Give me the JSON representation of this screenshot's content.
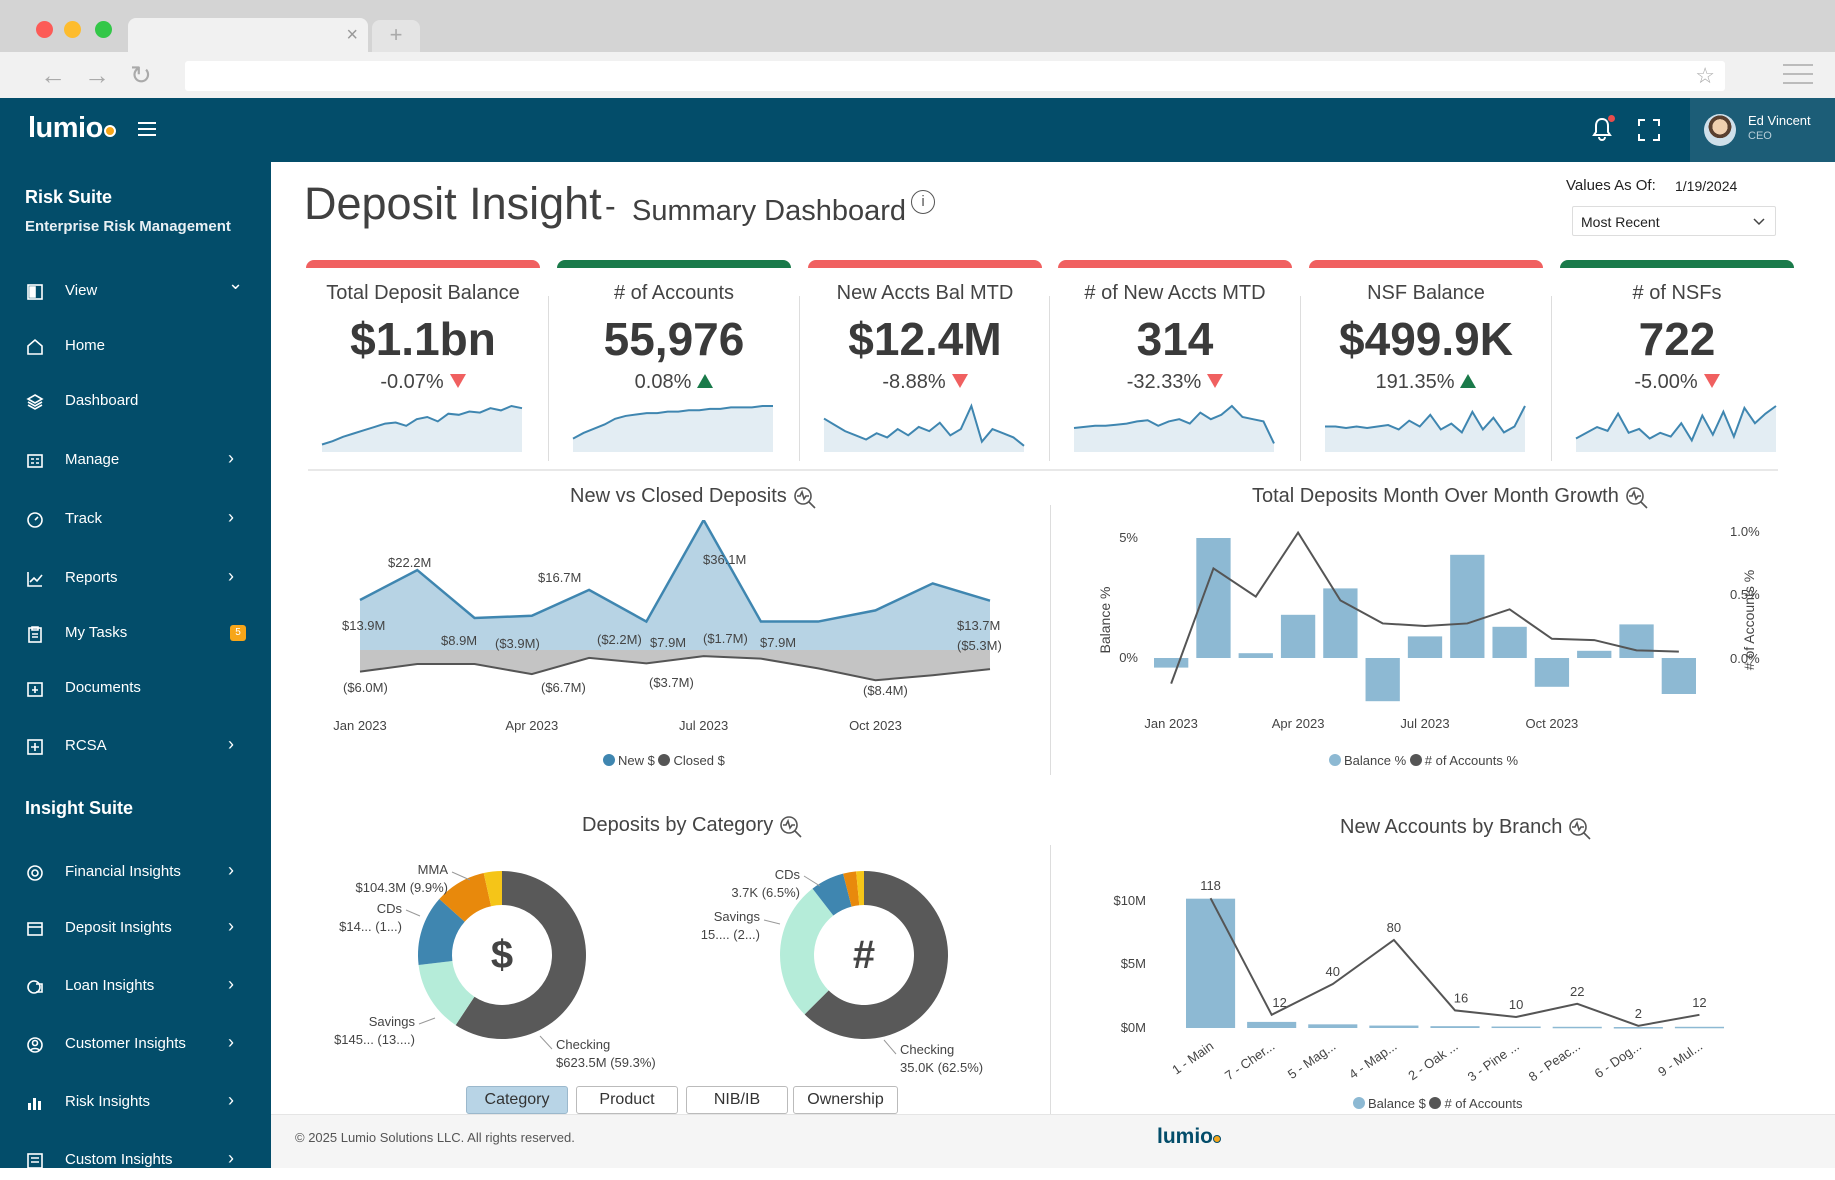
{
  "browser": {
    "tab_close": "×",
    "new_tab": "+",
    "back": "←",
    "forward": "→",
    "reload": "↻",
    "star": "☆"
  },
  "app": {
    "logo": "lumio",
    "footer_logo": "lumio"
  },
  "user": {
    "name": "Ed Vincent",
    "role": "CEO"
  },
  "sidebar": {
    "risk_suite_title": "Risk Suite",
    "risk_suite_subtitle": "Enterprise Risk Management",
    "insight_suite_title": "Insight Suite",
    "items": [
      {
        "label": "View",
        "chevron": "⌄"
      },
      {
        "label": "Home"
      },
      {
        "label": "Dashboard"
      },
      {
        "label": "Manage",
        "chevron": "›"
      },
      {
        "label": "Track",
        "chevron": "›"
      },
      {
        "label": "Reports",
        "chevron": "›"
      },
      {
        "label": "My Tasks",
        "badge": "5"
      },
      {
        "label": "Documents"
      },
      {
        "label": "RCSA",
        "chevron": "›"
      }
    ],
    "insight_items": [
      {
        "label": "Financial Insights",
        "chevron": "›"
      },
      {
        "label": "Deposit Insights",
        "chevron": "›"
      },
      {
        "label": "Loan Insights",
        "chevron": "›"
      },
      {
        "label": "Customer Insights",
        "chevron": "›"
      },
      {
        "label": "Risk Insights",
        "chevron": "›"
      },
      {
        "label": "Custom Insights",
        "chevron": "›"
      }
    ]
  },
  "header": {
    "title": "Deposit Insight",
    "dash": "-",
    "subtitle": "Summary Dashboard",
    "info": "i",
    "values_as_of_label": "Values As Of:",
    "values_as_of_date": "1/19/2024",
    "period_select": "Most Recent"
  },
  "colors": {
    "up": "#1a7a4a",
    "down": "#f06060",
    "primary": "#034d6a",
    "bar_light": "#8db9d3",
    "area": "#a9c9dc",
    "dark": "#595959",
    "orange": "#e8890c",
    "yellow": "#f5c518",
    "mint": "#b5ecd9",
    "blue": "#3f86b0"
  },
  "kpis": [
    {
      "label": "Total Deposit Balance",
      "value": "$1.1bn",
      "change": "-0.07%",
      "direction": "down",
      "spark": [
        5,
        8,
        12,
        15,
        18,
        21,
        24,
        25,
        22,
        28,
        30,
        26,
        33,
        32,
        35,
        34,
        38,
        36,
        40,
        38
      ]
    },
    {
      "label": "# of Accounts",
      "value": "55,976",
      "change": "0.08%",
      "direction": "up",
      "spark": [
        8,
        12,
        15,
        18,
        22,
        24,
        25,
        26,
        26,
        27,
        27,
        28,
        28,
        29,
        29,
        30,
        30,
        30,
        31,
        31
      ]
    },
    {
      "label": "New Accts Bal MTD",
      "value": "$12.4M",
      "change": "-8.88%",
      "direction": "down",
      "spark": [
        30,
        24,
        18,
        14,
        10,
        16,
        12,
        20,
        14,
        22,
        18,
        26,
        14,
        20,
        42,
        8,
        20,
        16,
        12,
        4
      ]
    },
    {
      "label": "# of New Accts MTD",
      "value": "314",
      "change": "-32.33%",
      "direction": "down",
      "spark": [
        20,
        21,
        22,
        22,
        23,
        24,
        26,
        27,
        22,
        26,
        28,
        24,
        34,
        28,
        32,
        40,
        30,
        28,
        26,
        6
      ]
    },
    {
      "label": "NSF Balance",
      "value": "$499.9K",
      "change": "191.35%",
      "direction": "up",
      "spark": [
        16,
        16,
        15,
        16,
        15,
        16,
        17,
        14,
        20,
        16,
        24,
        14,
        18,
        12,
        26,
        14,
        22,
        12,
        16,
        30
      ]
    },
    {
      "label": "# of NSFs",
      "value": "722",
      "change": "-5.00%",
      "direction": "down",
      "spark": [
        12,
        18,
        24,
        20,
        38,
        18,
        22,
        12,
        18,
        14,
        28,
        10,
        36,
        16,
        40,
        14,
        44,
        28,
        38,
        46
      ]
    }
  ],
  "charts": {
    "new_vs_closed_title": "New vs Closed Deposits",
    "mom_growth_title": "Total Deposits Month Over Month Growth",
    "by_category_title": "Deposits by Category",
    "by_branch_title": "New Accounts by Branch"
  },
  "chart_data": [
    {
      "type": "area",
      "title": "New vs Closed Deposits",
      "categories": [
        "Jan 2023",
        "Feb 2023",
        "Mar 2023",
        "Apr 2023",
        "May 2023",
        "Jun 2023",
        "Jul 2023",
        "Aug 2023",
        "Sep 2023",
        "Oct 2023",
        "Nov 2023",
        "Dec 2023"
      ],
      "x_tick_labels": [
        "Jan 2023",
        "Apr 2023",
        "Jul 2023",
        "Oct 2023"
      ],
      "series": [
        {
          "name": "New $",
          "values": [
            13.9,
            22.2,
            8.9,
            9.5,
            16.7,
            7.9,
            36.1,
            7.9,
            7.9,
            11.0,
            18.5,
            13.7
          ]
        },
        {
          "name": "Closed $",
          "values": [
            -6.0,
            -3.9,
            -3.9,
            -6.7,
            -2.2,
            -3.7,
            -1.7,
            -2.4,
            -5.1,
            -8.4,
            -7.0,
            -5.3
          ]
        }
      ],
      "data_labels": [
        "$13.9M",
        "$22.2M",
        "$8.9M",
        "($3.9M)",
        "$16.7M",
        "($2.2M)",
        "$7.9M",
        "($1.7M)",
        "$7.9M",
        "$36.1M",
        "$13.7M",
        "($5.3M)",
        "($6.0M)",
        "($6.7M)",
        "($3.7M)",
        "($8.4M)"
      ],
      "legend": [
        "New $",
        "Closed $"
      ]
    },
    {
      "type": "bar",
      "title": "Total Deposits Month Over Month Growth",
      "categories": [
        "Jan 2023",
        "Feb 2023",
        "Mar 2023",
        "Apr 2023",
        "May 2023",
        "Jun 2023",
        "Jul 2023",
        "Aug 2023",
        "Sep 2023",
        "Oct 2023",
        "Nov 2023",
        "Dec 2023",
        "Jan 2024"
      ],
      "x_tick_labels": [
        "Jan 2023",
        "Apr 2023",
        "Jul 2023",
        "Oct 2023"
      ],
      "series": [
        {
          "name": "Balance %",
          "type": "bar",
          "axis": "left",
          "values": [
            -0.4,
            5.0,
            0.2,
            1.8,
            2.9,
            -1.8,
            0.9,
            4.3,
            1.3,
            -1.2,
            0.3,
            1.4,
            -1.5
          ]
        },
        {
          "name": "# of Accounts %",
          "type": "line",
          "axis": "right",
          "values": [
            -0.2,
            0.7,
            0.48,
            0.98,
            0.45,
            0.27,
            0.25,
            0.27,
            0.38,
            0.15,
            0.14,
            0.06,
            0.05
          ]
        }
      ],
      "ylabel": "Balance %",
      "y2label": "# of Accounts %",
      "y_ticks": [
        "5%",
        "0%"
      ],
      "y2_ticks": [
        "1.0%",
        "0.5%",
        "0.0%"
      ],
      "legend": [
        "Balance %",
        "# of Accounts %"
      ]
    },
    {
      "type": "pie",
      "title": "Deposits by Category",
      "center_symbol": "$",
      "slices": [
        {
          "name": "Checking",
          "value": 59.3,
          "label": "$623.5M (59.3%)"
        },
        {
          "name": "Savings",
          "value": 13.8,
          "label": "$145... (13....)"
        },
        {
          "name": "CDs",
          "value": 13.5,
          "label": "$14... (1...)"
        },
        {
          "name": "MMA",
          "value": 9.9,
          "label": "$104.3M (9.9%)"
        },
        {
          "name": "Other",
          "value": 3.5
        }
      ]
    },
    {
      "type": "pie",
      "title": "Deposits by Category",
      "center_symbol": "#",
      "slices": [
        {
          "name": "Checking",
          "value": 62.5,
          "label": "35.0K (62.5%)"
        },
        {
          "name": "Savings",
          "value": 27.0,
          "label": "15.... (2...)"
        },
        {
          "name": "CDs",
          "value": 6.5,
          "label": "3.7K (6.5%)"
        },
        {
          "name": "MMA",
          "value": 2.5
        },
        {
          "name": "Other",
          "value": 1.5
        }
      ]
    },
    {
      "type": "bar",
      "title": "New Accounts by Branch",
      "categories": [
        "1 - Main",
        "7 - Cher...",
        "5 - Mag...",
        "4 - Map...",
        "2 - Oak ...",
        "3 - Pine ...",
        "8 - Peac...",
        "6 - Dog...",
        "9 - Mul..."
      ],
      "series": [
        {
          "name": "Balance $",
          "type": "bar",
          "values": [
            10.6,
            0.5,
            0.3,
            0.2,
            0.15,
            0.12,
            0.1,
            0.08,
            0.1
          ]
        },
        {
          "name": "# of Accounts",
          "type": "line",
          "values": [
            118,
            12,
            40,
            80,
            16,
            10,
            22,
            2,
            12
          ]
        }
      ],
      "y_ticks": [
        "$10M",
        "$5M",
        "$0M"
      ],
      "legend": [
        "Balance $",
        "# of Accounts"
      ]
    }
  ],
  "tabs": [
    "Category",
    "Product",
    "NIB/IB",
    "Ownership"
  ],
  "footer": {
    "copyright": "© 2025 Lumio Solutions LLC. All rights reserved."
  }
}
